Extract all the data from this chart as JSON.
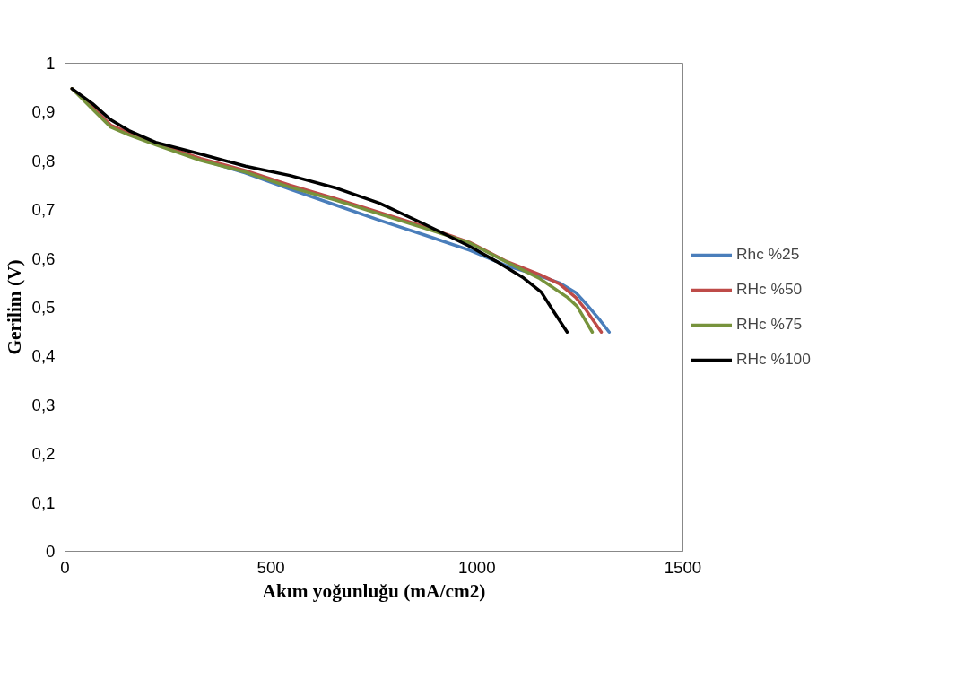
{
  "chart_data": {
    "type": "line",
    "xlabel": "Akım yoğunluğu (mA/cm2)",
    "ylabel": "Gerilim (V)",
    "xlim": [
      0,
      1500
    ],
    "xticks": [
      0,
      500,
      1000,
      1500
    ],
    "ylim": [
      0,
      1
    ],
    "yticks": [
      {
        "value": 0,
        "label": "0"
      },
      {
        "value": 0.1,
        "label": "0,1"
      },
      {
        "value": 0.2,
        "label": "0,2"
      },
      {
        "value": 0.3,
        "label": "0,3"
      },
      {
        "value": 0.4,
        "label": "0,4"
      },
      {
        "value": 0.5,
        "label": "0,5"
      },
      {
        "value": 0.6,
        "label": "0,6"
      },
      {
        "value": 0.7,
        "label": "0,7"
      },
      {
        "value": 0.8,
        "label": "0,8"
      },
      {
        "value": 0.9,
        "label": "0,9"
      },
      {
        "value": 1,
        "label": "1"
      }
    ],
    "grid": false,
    "legend": "right",
    "marker": "none",
    "line_style": "solid",
    "series": [
      {
        "name": "Rhc %25",
        "color": "#4a7ebb",
        "x": [
          329,
          438,
          546,
          655,
          764,
          873,
          982,
          1069,
          1150,
          1200,
          1240,
          1265,
          1300,
          1321
        ],
        "values": [
          0.803,
          0.775,
          0.742,
          0.71,
          0.678,
          0.648,
          0.617,
          0.586,
          0.565,
          0.55,
          0.53,
          0.507,
          0.472,
          0.449
        ]
      },
      {
        "name": "RHc %50",
        "color": "#be4b48",
        "x": [
          17,
          67,
          111,
          155,
          220,
          329,
          438,
          546,
          655,
          764,
          873,
          982,
          1069,
          1150,
          1200,
          1240,
          1265,
          1302
        ],
        "values": [
          0.948,
          0.91,
          0.873,
          0.858,
          0.836,
          0.805,
          0.78,
          0.75,
          0.723,
          0.694,
          0.665,
          0.633,
          0.595,
          0.568,
          0.548,
          0.52,
          0.494,
          0.449
        ]
      },
      {
        "name": "RHc %75",
        "color": "#77933c",
        "x": [
          17,
          67,
          111,
          155,
          220,
          329,
          438,
          546,
          655,
          764,
          873,
          982,
          1069,
          1150,
          1178,
          1220,
          1243,
          1280
        ],
        "values": [
          0.948,
          0.906,
          0.869,
          0.853,
          0.833,
          0.801,
          0.777,
          0.746,
          0.72,
          0.691,
          0.662,
          0.632,
          0.594,
          0.56,
          0.544,
          0.52,
          0.502,
          0.449
        ]
      },
      {
        "name": "RHc %100",
        "color": "#000000",
        "x": [
          17,
          67,
          111,
          155,
          220,
          329,
          438,
          546,
          655,
          764,
          873,
          982,
          1047,
          1113,
          1156,
          1184,
          1219
        ],
        "values": [
          0.948,
          0.917,
          0.884,
          0.862,
          0.838,
          0.814,
          0.789,
          0.77,
          0.745,
          0.713,
          0.67,
          0.625,
          0.594,
          0.56,
          0.531,
          0.494,
          0.449
        ]
      }
    ]
  }
}
